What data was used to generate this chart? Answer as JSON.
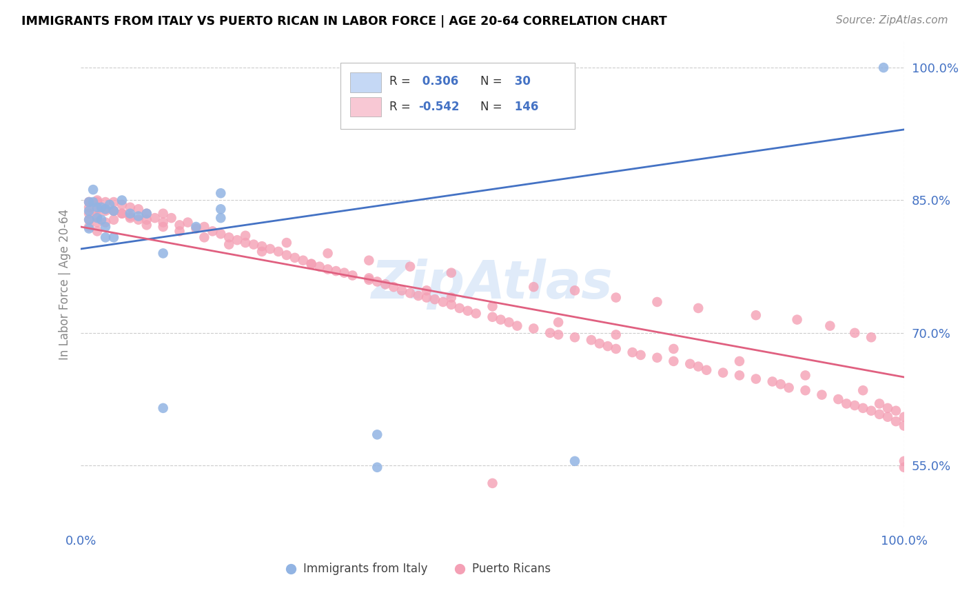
{
  "title": "IMMIGRANTS FROM ITALY VS PUERTO RICAN IN LABOR FORCE | AGE 20-64 CORRELATION CHART",
  "source": "Source: ZipAtlas.com",
  "ylabel": "In Labor Force | Age 20-64",
  "xlim": [
    0.0,
    1.0
  ],
  "ylim": [
    0.48,
    1.03
  ],
  "yticks": [
    0.55,
    0.7,
    0.85,
    1.0
  ],
  "ytick_labels": [
    "55.0%",
    "70.0%",
    "85.0%",
    "100.0%"
  ],
  "blue_R": 0.306,
  "blue_N": 30,
  "pink_R": -0.542,
  "pink_N": 146,
  "blue_color": "#92b4e3",
  "pink_color": "#f4a0b5",
  "blue_line_color": "#4472c4",
  "pink_line_color": "#e06080",
  "legend_box_blue": "#c5d8f5",
  "legend_box_pink": "#f8c8d4",
  "watermark": "ZipAtlas",
  "blue_line_x0": 0.0,
  "blue_line_y0": 0.795,
  "blue_line_x1": 1.0,
  "blue_line_y1": 0.93,
  "pink_line_x0": 0.0,
  "pink_line_y0": 0.82,
  "pink_line_x1": 1.0,
  "pink_line_y1": 0.65,
  "blue_x": [
    0.01,
    0.01,
    0.01,
    0.01,
    0.015,
    0.015,
    0.02,
    0.02,
    0.025,
    0.025,
    0.03,
    0.03,
    0.03,
    0.035,
    0.04,
    0.04,
    0.05,
    0.06,
    0.07,
    0.08,
    0.1,
    0.14,
    0.17,
    0.17,
    0.17,
    0.36,
    0.36,
    0.1,
    0.6,
    0.975
  ],
  "blue_y": [
    0.848,
    0.838,
    0.828,
    0.818,
    0.862,
    0.848,
    0.842,
    0.83,
    0.842,
    0.828,
    0.84,
    0.82,
    0.808,
    0.845,
    0.838,
    0.808,
    0.85,
    0.835,
    0.832,
    0.835,
    0.615,
    0.82,
    0.858,
    0.84,
    0.83,
    0.585,
    0.548,
    0.79,
    0.555,
    1.0
  ],
  "pink_x": [
    0.01,
    0.01,
    0.01,
    0.01,
    0.01,
    0.02,
    0.02,
    0.02,
    0.02,
    0.02,
    0.03,
    0.03,
    0.03,
    0.04,
    0.04,
    0.04,
    0.05,
    0.05,
    0.06,
    0.06,
    0.07,
    0.07,
    0.08,
    0.08,
    0.09,
    0.1,
    0.1,
    0.11,
    0.12,
    0.13,
    0.14,
    0.15,
    0.16,
    0.17,
    0.18,
    0.19,
    0.2,
    0.21,
    0.22,
    0.23,
    0.24,
    0.25,
    0.26,
    0.27,
    0.28,
    0.29,
    0.3,
    0.31,
    0.32,
    0.33,
    0.35,
    0.36,
    0.37,
    0.38,
    0.39,
    0.4,
    0.41,
    0.42,
    0.43,
    0.44,
    0.45,
    0.46,
    0.47,
    0.48,
    0.5,
    0.51,
    0.52,
    0.53,
    0.55,
    0.57,
    0.58,
    0.6,
    0.62,
    0.63,
    0.64,
    0.65,
    0.67,
    0.68,
    0.7,
    0.72,
    0.74,
    0.75,
    0.76,
    0.78,
    0.8,
    0.82,
    0.84,
    0.85,
    0.86,
    0.88,
    0.9,
    0.92,
    0.93,
    0.94,
    0.95,
    0.96,
    0.97,
    0.98,
    0.99,
    1.0,
    0.01,
    0.02,
    0.03,
    0.04,
    0.05,
    0.06,
    0.08,
    0.1,
    0.12,
    0.15,
    0.18,
    0.22,
    0.28,
    0.35,
    0.42,
    0.5,
    0.58,
    0.65,
    0.72,
    0.8,
    0.88,
    0.95,
    0.97,
    0.98,
    0.99,
    1.0,
    1.0,
    1.0,
    0.3,
    0.35,
    0.4,
    0.45,
    0.55,
    0.6,
    0.65,
    0.7,
    0.75,
    0.82,
    0.87,
    0.91,
    0.94,
    0.96,
    0.5,
    0.2,
    0.25,
    0.45
  ],
  "pink_y": [
    0.848,
    0.842,
    0.835,
    0.828,
    0.82,
    0.85,
    0.84,
    0.832,
    0.825,
    0.815,
    0.848,
    0.838,
    0.825,
    0.848,
    0.838,
    0.828,
    0.845,
    0.835,
    0.842,
    0.832,
    0.84,
    0.828,
    0.835,
    0.822,
    0.83,
    0.835,
    0.825,
    0.83,
    0.822,
    0.825,
    0.818,
    0.82,
    0.815,
    0.812,
    0.808,
    0.805,
    0.802,
    0.8,
    0.798,
    0.795,
    0.792,
    0.788,
    0.785,
    0.782,
    0.778,
    0.775,
    0.772,
    0.77,
    0.768,
    0.765,
    0.76,
    0.758,
    0.755,
    0.752,
    0.748,
    0.745,
    0.742,
    0.74,
    0.738,
    0.735,
    0.732,
    0.728,
    0.725,
    0.722,
    0.718,
    0.715,
    0.712,
    0.708,
    0.705,
    0.7,
    0.698,
    0.695,
    0.692,
    0.688,
    0.685,
    0.682,
    0.678,
    0.675,
    0.672,
    0.668,
    0.665,
    0.662,
    0.658,
    0.655,
    0.652,
    0.648,
    0.645,
    0.642,
    0.638,
    0.635,
    0.63,
    0.625,
    0.62,
    0.618,
    0.615,
    0.612,
    0.608,
    0.605,
    0.6,
    0.595,
    0.848,
    0.848,
    0.84,
    0.838,
    0.835,
    0.83,
    0.828,
    0.82,
    0.815,
    0.808,
    0.8,
    0.792,
    0.778,
    0.762,
    0.748,
    0.73,
    0.712,
    0.698,
    0.682,
    0.668,
    0.652,
    0.635,
    0.62,
    0.615,
    0.612,
    0.605,
    0.555,
    0.548,
    0.79,
    0.782,
    0.775,
    0.768,
    0.752,
    0.748,
    0.74,
    0.735,
    0.728,
    0.72,
    0.715,
    0.708,
    0.7,
    0.695,
    0.53,
    0.81,
    0.802,
    0.74
  ]
}
